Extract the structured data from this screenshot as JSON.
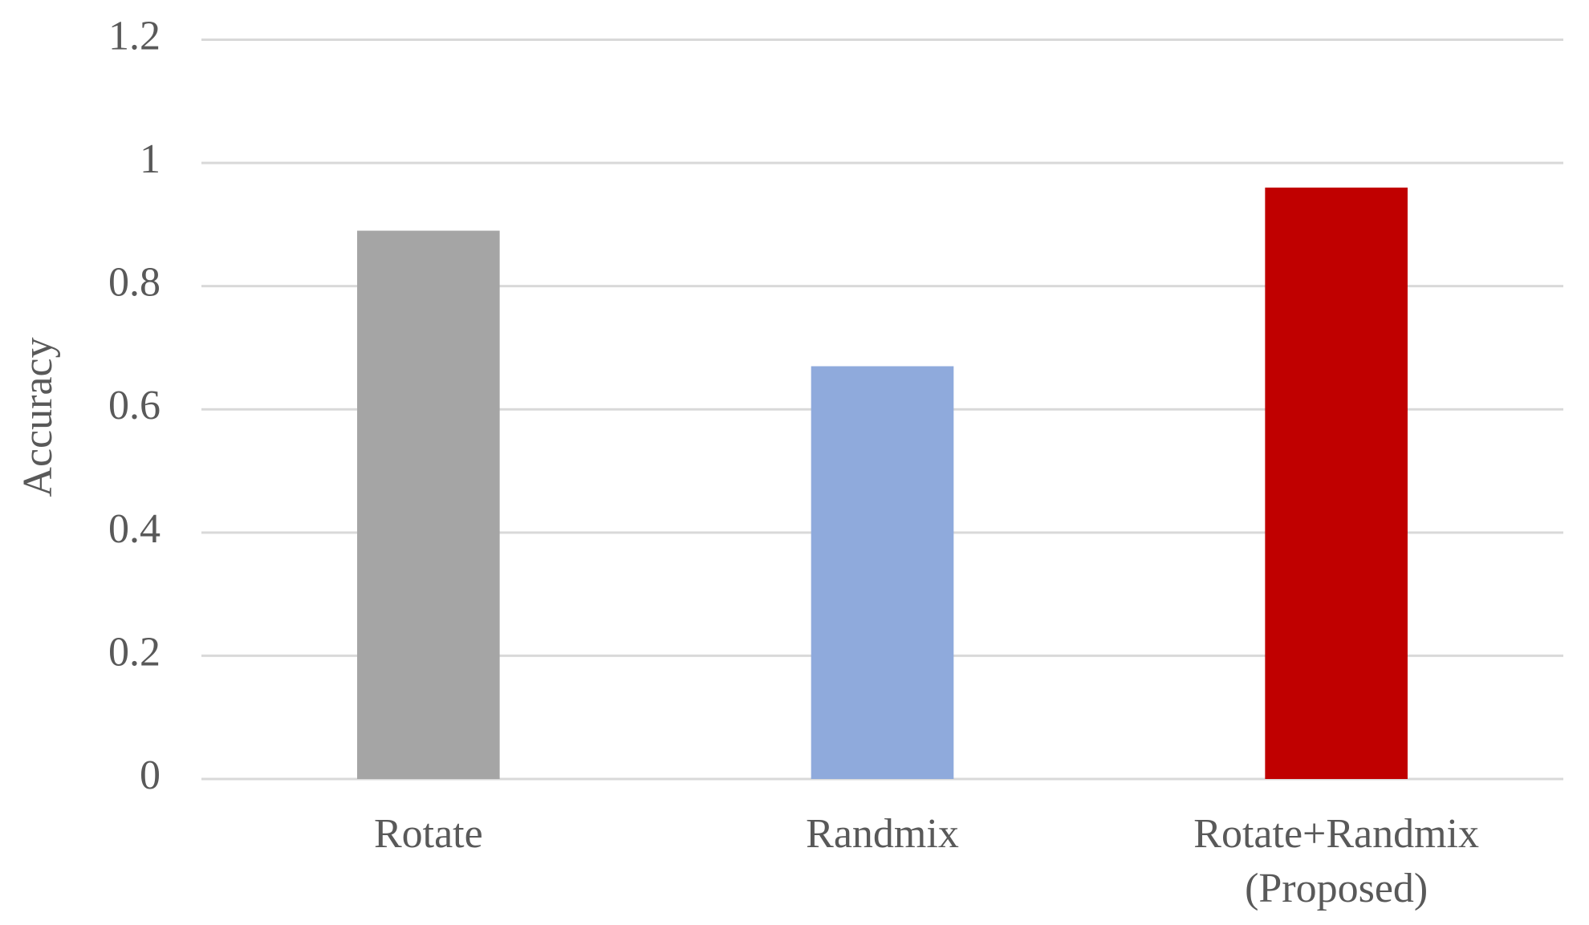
{
  "chart_data": {
    "type": "bar",
    "y_label": "Accuracy",
    "categories": [
      "Rotate",
      "Randmix",
      "Rotate+Randmix (Proposed)"
    ],
    "values": [
      0.89,
      0.67,
      0.96
    ],
    "colors": [
      "#a5a5a5",
      "#8faadc",
      "#c00000"
    ],
    "ylim": [
      0,
      1.2
    ],
    "yticks": [
      0,
      0.2,
      0.4,
      0.6,
      0.8,
      1,
      1.2
    ],
    "grid": true
  }
}
